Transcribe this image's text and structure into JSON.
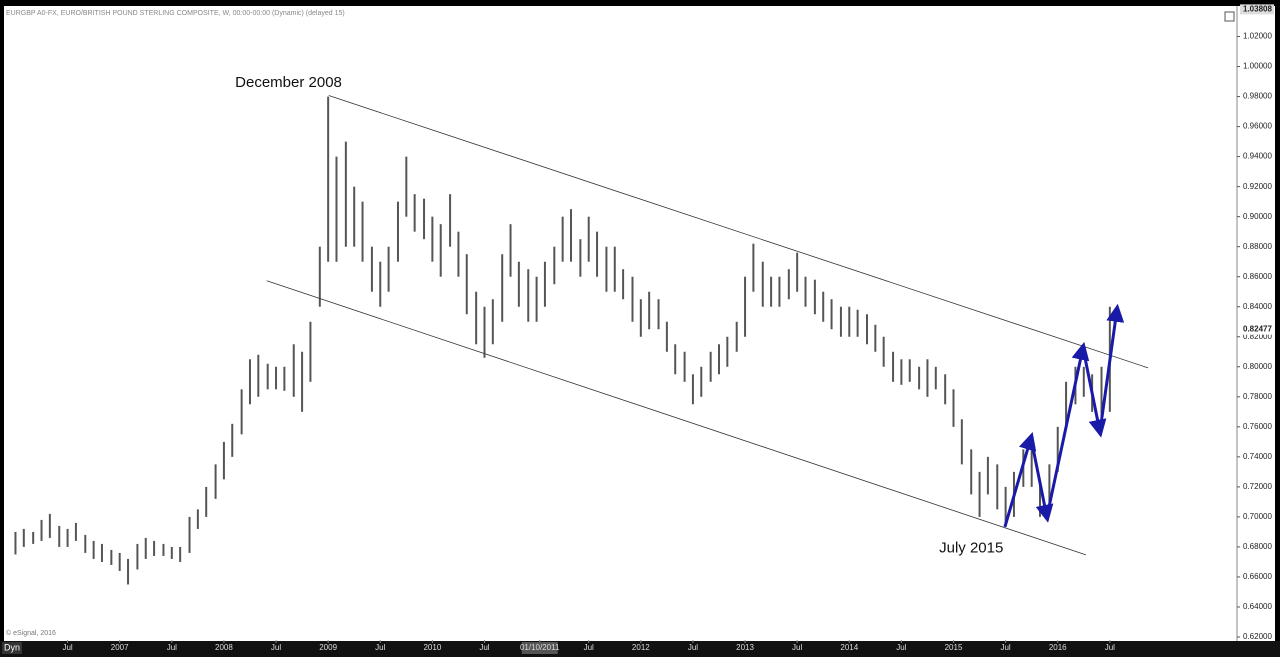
{
  "header": "EURGBP A0-FX, EURO/BRITISH POUND STERLING COMPOSITE, W, 00:00-00:00 (Dynamic) (delayed 15)",
  "footer": "© eSignal, 2016",
  "toolbar": "Dyn",
  "chart_data": {
    "type": "ohlc",
    "color": "#555555",
    "xlim": [
      2005.89,
      2017.72
    ],
    "ylim": [
      0.618,
      1.039
    ],
    "yticks": [
      {
        "value": 0.62,
        "label": "0.62000"
      },
      {
        "value": 0.64,
        "label": "0.64000"
      },
      {
        "value": 0.66,
        "label": "0.66000"
      },
      {
        "value": 0.68,
        "label": "0.68000"
      },
      {
        "value": 0.7,
        "label": "0.70000"
      },
      {
        "value": 0.72,
        "label": "0.72000"
      },
      {
        "value": 0.74,
        "label": "0.74000"
      },
      {
        "value": 0.76,
        "label": "0.76000"
      },
      {
        "value": 0.78,
        "label": "0.78000"
      },
      {
        "value": 0.8,
        "label": "0.80000"
      },
      {
        "value": 0.82,
        "label": "0.82000"
      },
      {
        "value": 0.84,
        "label": "0.84000"
      },
      {
        "value": 0.86,
        "label": "0.86000"
      },
      {
        "value": 0.88,
        "label": "0.88000"
      },
      {
        "value": 0.9,
        "label": "0.90000"
      },
      {
        "value": 0.92,
        "label": "0.92000"
      },
      {
        "value": 0.94,
        "label": "0.94000"
      },
      {
        "value": 0.96,
        "label": "0.96000"
      },
      {
        "value": 0.98,
        "label": "0.98000"
      },
      {
        "value": 1.0,
        "label": "1.00000"
      },
      {
        "value": 1.02,
        "label": "1.02000"
      }
    ],
    "xticks": [
      {
        "value": 2006.5,
        "label": "Jul"
      },
      {
        "value": 2007,
        "label": "2007"
      },
      {
        "value": 2007.5,
        "label": "Jul"
      },
      {
        "value": 2008,
        "label": "2008"
      },
      {
        "value": 2008.5,
        "label": "Jul"
      },
      {
        "value": 2009,
        "label": "2009"
      },
      {
        "value": 2009.5,
        "label": "Jul"
      },
      {
        "value": 2010,
        "label": "2010"
      },
      {
        "value": 2010.5,
        "label": "Jul"
      },
      {
        "value": 2011.03,
        "label": "01/10/2011"
      },
      {
        "value": 2011.5,
        "label": "Jul"
      },
      {
        "value": 2012,
        "label": "2012"
      },
      {
        "value": 2012.5,
        "label": "Jul"
      },
      {
        "value": 2013,
        "label": "2013"
      },
      {
        "value": 2013.5,
        "label": "Jul"
      },
      {
        "value": 2014,
        "label": "2014"
      },
      {
        "value": 2014.5,
        "label": "Jul"
      },
      {
        "value": 2015,
        "label": "2015"
      },
      {
        "value": 2015.5,
        "label": "Jul"
      },
      {
        "value": 2016,
        "label": "2016"
      },
      {
        "value": 2016.5,
        "label": "Jul"
      }
    ],
    "top_label": {
      "value": 1.03808,
      "label": "1.03808"
    },
    "last_price": {
      "value": 0.82477,
      "label": "0.82477"
    },
    "x": [
      2006.0,
      2006.08,
      2006.17,
      2006.25,
      2006.33,
      2006.42,
      2006.5,
      2006.58,
      2006.67,
      2006.75,
      2006.83,
      2006.92,
      2007.0,
      2007.08,
      2007.17,
      2007.25,
      2007.33,
      2007.42,
      2007.5,
      2007.58,
      2007.67,
      2007.75,
      2007.83,
      2007.92,
      2008.0,
      2008.08,
      2008.17,
      2008.25,
      2008.33,
      2008.42,
      2008.5,
      2008.58,
      2008.67,
      2008.75,
      2008.83,
      2008.92,
      2009.0,
      2009.08,
      2009.17,
      2009.25,
      2009.33,
      2009.42,
      2009.5,
      2009.58,
      2009.67,
      2009.75,
      2009.83,
      2009.92,
      2010.0,
      2010.08,
      2010.17,
      2010.25,
      2010.33,
      2010.42,
      2010.5,
      2010.58,
      2010.67,
      2010.75,
      2010.83,
      2010.92,
      2011.0,
      2011.08,
      2011.17,
      2011.25,
      2011.33,
      2011.42,
      2011.5,
      2011.58,
      2011.67,
      2011.75,
      2011.83,
      2011.92,
      2012.0,
      2012.08,
      2012.17,
      2012.25,
      2012.33,
      2012.42,
      2012.5,
      2012.58,
      2012.67,
      2012.75,
      2012.83,
      2012.92,
      2013.0,
      2013.08,
      2013.17,
      2013.25,
      2013.33,
      2013.42,
      2013.5,
      2013.58,
      2013.67,
      2013.75,
      2013.83,
      2013.92,
      2014.0,
      2014.08,
      2014.17,
      2014.25,
      2014.33,
      2014.42,
      2014.5,
      2014.58,
      2014.67,
      2014.75,
      2014.83,
      2014.92,
      2015.0,
      2015.08,
      2015.17,
      2015.25,
      2015.33,
      2015.42,
      2015.5,
      2015.58,
      2015.67,
      2015.75,
      2015.83,
      2015.92,
      2016.0,
      2016.08,
      2016.17,
      2016.25,
      2016.33,
      2016.42,
      2016.5
    ],
    "low": [
      0.675,
      0.68,
      0.682,
      0.684,
      0.686,
      0.68,
      0.68,
      0.684,
      0.676,
      0.672,
      0.67,
      0.668,
      0.664,
      0.655,
      0.665,
      0.672,
      0.674,
      0.674,
      0.672,
      0.67,
      0.676,
      0.692,
      0.7,
      0.712,
      0.725,
      0.74,
      0.755,
      0.775,
      0.78,
      0.785,
      0.785,
      0.784,
      0.78,
      0.77,
      0.79,
      0.84,
      0.87,
      0.87,
      0.88,
      0.88,
      0.87,
      0.85,
      0.84,
      0.85,
      0.87,
      0.9,
      0.89,
      0.885,
      0.87,
      0.86,
      0.88,
      0.86,
      0.835,
      0.815,
      0.806,
      0.815,
      0.83,
      0.86,
      0.84,
      0.83,
      0.83,
      0.84,
      0.855,
      0.87,
      0.87,
      0.86,
      0.87,
      0.86,
      0.85,
      0.85,
      0.845,
      0.83,
      0.82,
      0.825,
      0.825,
      0.81,
      0.795,
      0.79,
      0.775,
      0.78,
      0.79,
      0.795,
      0.8,
      0.81,
      0.82,
      0.85,
      0.84,
      0.84,
      0.84,
      0.845,
      0.85,
      0.84,
      0.835,
      0.83,
      0.825,
      0.82,
      0.82,
      0.82,
      0.815,
      0.81,
      0.8,
      0.79,
      0.788,
      0.79,
      0.785,
      0.78,
      0.785,
      0.775,
      0.76,
      0.735,
      0.715,
      0.7,
      0.715,
      0.705,
      0.695,
      0.7,
      0.72,
      0.72,
      0.7,
      0.71,
      0.73,
      0.76,
      0.775,
      0.78,
      0.77,
      0.76,
      0.77
    ],
    "high": [
      0.69,
      0.692,
      0.69,
      0.698,
      0.702,
      0.694,
      0.692,
      0.696,
      0.688,
      0.684,
      0.682,
      0.678,
      0.676,
      0.672,
      0.682,
      0.686,
      0.684,
      0.682,
      0.68,
      0.68,
      0.7,
      0.705,
      0.72,
      0.735,
      0.75,
      0.762,
      0.785,
      0.805,
      0.808,
      0.802,
      0.8,
      0.8,
      0.815,
      0.81,
      0.83,
      0.88,
      0.98,
      0.94,
      0.95,
      0.92,
      0.91,
      0.88,
      0.87,
      0.88,
      0.91,
      0.94,
      0.915,
      0.912,
      0.9,
      0.895,
      0.915,
      0.89,
      0.875,
      0.85,
      0.84,
      0.845,
      0.875,
      0.895,
      0.87,
      0.865,
      0.86,
      0.87,
      0.88,
      0.9,
      0.905,
      0.885,
      0.9,
      0.89,
      0.88,
      0.88,
      0.865,
      0.86,
      0.845,
      0.85,
      0.845,
      0.83,
      0.815,
      0.81,
      0.795,
      0.8,
      0.81,
      0.815,
      0.82,
      0.83,
      0.86,
      0.882,
      0.87,
      0.86,
      0.86,
      0.865,
      0.876,
      0.86,
      0.858,
      0.85,
      0.845,
      0.84,
      0.84,
      0.838,
      0.835,
      0.828,
      0.82,
      0.81,
      0.805,
      0.805,
      0.8,
      0.805,
      0.8,
      0.795,
      0.785,
      0.765,
      0.745,
      0.73,
      0.74,
      0.735,
      0.72,
      0.73,
      0.745,
      0.745,
      0.725,
      0.735,
      0.76,
      0.79,
      0.8,
      0.8,
      0.795,
      0.8,
      0.84
    ],
    "trendlines": [
      {
        "x": [
          2009.006,
          2016.866
        ],
        "y": [
          0.9807,
          0.7993
        ]
      },
      {
        "x": [
          2008.411,
          2016.271
        ],
        "y": [
          0.8573,
          0.6747
        ]
      }
    ],
    "wave": {
      "color": "#1a1aa8",
      "x": [
        2015.493,
        2015.743,
        2015.896,
        2016.242,
        2016.405,
        2016.568
      ],
      "y": [
        0.6933,
        0.7527,
        0.7,
        0.8127,
        0.7567,
        0.838
      ]
    },
    "annotations": [
      {
        "text": "December 2008",
        "x": 2008.62,
        "y": 0.989
      },
      {
        "text": "July 2015",
        "x": 2015.17,
        "y": 0.679
      }
    ]
  }
}
